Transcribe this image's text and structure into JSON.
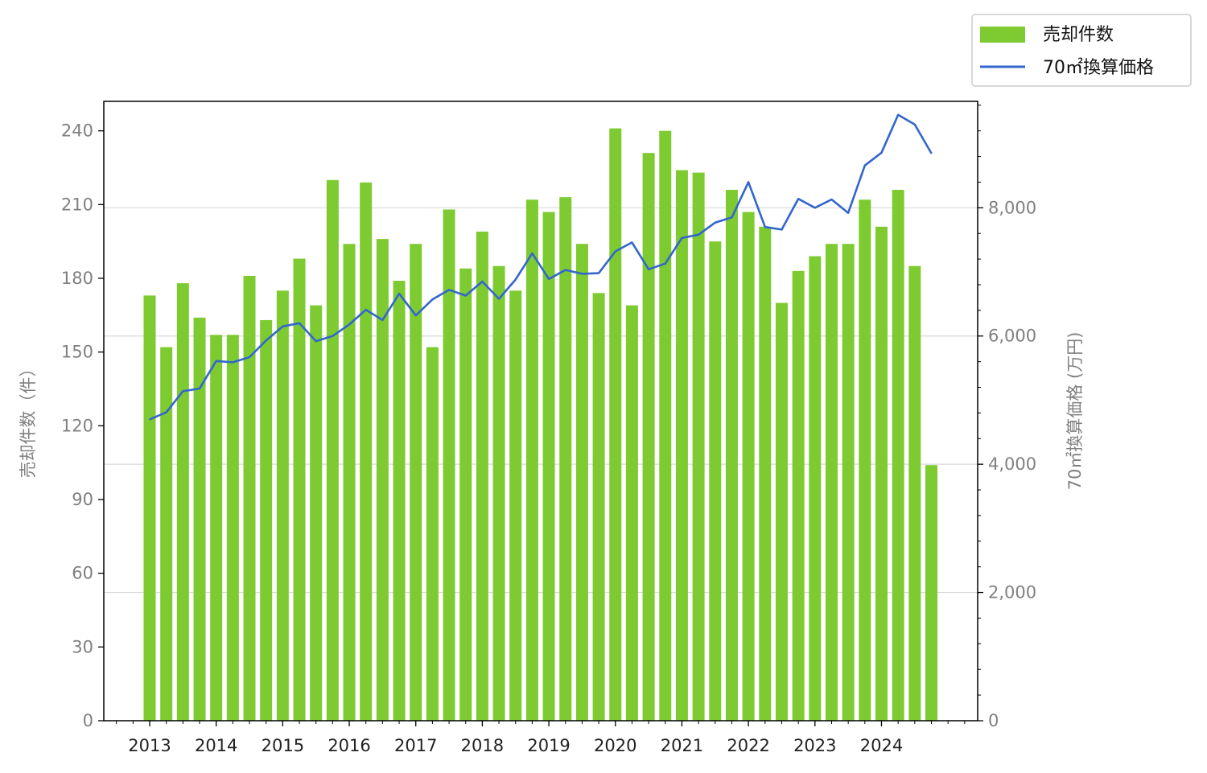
{
  "chart_data": {
    "type": "bar",
    "ylabel_left": "売却件数（件）",
    "ylabel_right": "70㎡換算価格 (万円)",
    "ylim_left": [
      0,
      252
    ],
    "ylim_right": [
      0,
      9660
    ],
    "yticks_left": [
      "0",
      "30",
      "60",
      "90",
      "120",
      "150",
      "180",
      "210",
      "240"
    ],
    "yticks_right": [
      "0",
      "2,000",
      "4,000",
      "6,000",
      "8,000"
    ],
    "xticks": [
      "2013",
      "2014",
      "2015",
      "2016",
      "2017",
      "2018",
      "2019",
      "2020",
      "2021",
      "2022",
      "2023",
      "2024"
    ],
    "grid": "horizontal, right axis",
    "legend_position": "top-right, outside",
    "legend": {
      "bar_label": "売却件数",
      "line_label": "70㎡換算価格"
    },
    "colors": {
      "bar": "#7ecb31",
      "line": "#3366cc",
      "grid": "#d9d9d9"
    },
    "categories": [
      "2013 Q1",
      "2013 Q2",
      "2013 Q3",
      "2013 Q4",
      "2014 Q1",
      "2014 Q2",
      "2014 Q3",
      "2014 Q4",
      "2015 Q1",
      "2015 Q2",
      "2015 Q3",
      "2015 Q4",
      "2016 Q1",
      "2016 Q2",
      "2016 Q3",
      "2016 Q4",
      "2017 Q1",
      "2017 Q2",
      "2017 Q3",
      "2017 Q4",
      "2018 Q1",
      "2018 Q2",
      "2018 Q3",
      "2018 Q4",
      "2019 Q1",
      "2019 Q2",
      "2019 Q3",
      "2019 Q4",
      "2020 Q1",
      "2020 Q2",
      "2020 Q3",
      "2020 Q4",
      "2021 Q1",
      "2021 Q2",
      "2021 Q3",
      "2021 Q4",
      "2022 Q1",
      "2022 Q2",
      "2022 Q3",
      "2022 Q4",
      "2023 Q1",
      "2023 Q2",
      "2023 Q3",
      "2023 Q4",
      "2024 Q1",
      "2024 Q2",
      "2024 Q3",
      "2024 Q4"
    ],
    "series": [
      {
        "name": "売却件数",
        "type": "bar",
        "axis": "left",
        "values": [
          173,
          152,
          178,
          164,
          157,
          157,
          181,
          163,
          175,
          188,
          169,
          220,
          194,
          219,
          196,
          179,
          194,
          152,
          208,
          184,
          199,
          185,
          175,
          212,
          207,
          213,
          194,
          174,
          241,
          169,
          231,
          240,
          224,
          223,
          195,
          216,
          207,
          201,
          170,
          183,
          189,
          194,
          194,
          212,
          201,
          216,
          185,
          104
        ]
      },
      {
        "name": "70㎡換算価格",
        "type": "line",
        "axis": "right",
        "values": [
          4700,
          4810,
          5140,
          5180,
          5610,
          5590,
          5670,
          5930,
          6150,
          6200,
          5920,
          6000,
          6180,
          6410,
          6250,
          6660,
          6320,
          6570,
          6720,
          6630,
          6850,
          6580,
          6880,
          7290,
          6890,
          7030,
          6970,
          6980,
          7320,
          7460,
          7040,
          7130,
          7530,
          7580,
          7770,
          7850,
          8400,
          7700,
          7660,
          8140,
          8000,
          8130,
          7920,
          8660,
          8860,
          9450,
          9300,
          8850
        ]
      }
    ]
  }
}
